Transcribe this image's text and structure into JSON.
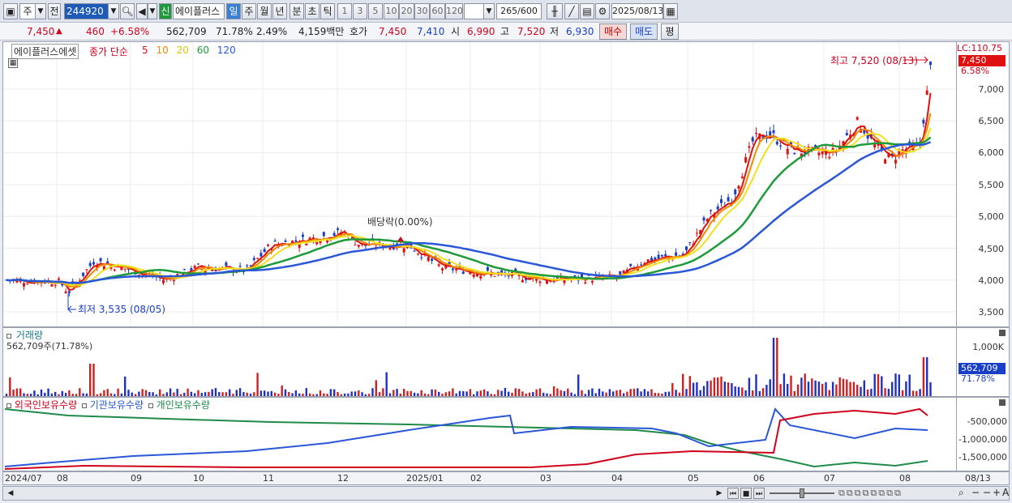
{
  "toolbar": {
    "market": "주",
    "prev": "전",
    "code": "244920",
    "new_badge": "신",
    "stock_name": "에이플러스",
    "periods": [
      "일",
      "주",
      "월",
      "년",
      "분",
      "초",
      "틱"
    ],
    "minutes": [
      "1",
      "3",
      "5",
      "10",
      "20",
      "30",
      "60",
      "120"
    ],
    "count": "265",
    "count_total": "/600",
    "date": "2025/08/13"
  },
  "quote": {
    "price": "7,450",
    "change": "460",
    "change_pct": "+6.58%",
    "volume": "562,709",
    "volume_pct": "71.78%",
    "turnover": "2.49%",
    "amount": "4,159백만",
    "bid_label": "호가",
    "ask": "7,450",
    "bid": "7,410",
    "open_label": "시",
    "open": "6,990",
    "high_label": "고",
    "high": "7,520",
    "low_label": "저",
    "low": "6,930",
    "buy_btn": "매수",
    "sell_btn": "매도",
    "avg_btn": "평"
  },
  "price_pane": {
    "title": "에이플러스에셋",
    "ma_label": "종가 단순",
    "ma_periods": [
      "5",
      "10",
      "20",
      "60",
      "120"
    ],
    "ma_colors": [
      "#e01010",
      "#f08a00",
      "#f0e020",
      "#1f9a3a",
      "#2a56d8"
    ],
    "lc_label": "LC:110.75",
    "last_price_tag": "7,450",
    "last_pct_tag": "6.58%",
    "high_note": "최고 7,520 (08/13)",
    "low_note": "최저 3,535 (08/05)",
    "dividend_note": "배당락(0.00%)",
    "y_ticks": [
      "7,000",
      "6,500",
      "6,000",
      "5,500",
      "5,000",
      "4,500",
      "4,000",
      "3,500"
    ]
  },
  "volume_pane": {
    "title": "거래량",
    "subtitle": "562,709주(71.78%)",
    "y_tick": "1,000K",
    "last_tag": "562,709",
    "last_pct": "71.78%"
  },
  "holdings_pane": {
    "legend": [
      "외국인보유수량",
      "기관보유수량",
      "개인보유수량"
    ],
    "legend_colors": [
      "#d0021b",
      "#2a56d8",
      "#1f8a4a"
    ],
    "y_ticks": [
      "-500,000",
      "-1,000,000",
      "-1,500,000"
    ]
  },
  "x_axis": {
    "labels": [
      "2024/07",
      "08",
      "09",
      "10",
      "11",
      "12",
      "2025/01",
      "02",
      "03",
      "04",
      "05",
      "06",
      "07",
      "08"
    ],
    "cursor_date": "08/13"
  }
}
